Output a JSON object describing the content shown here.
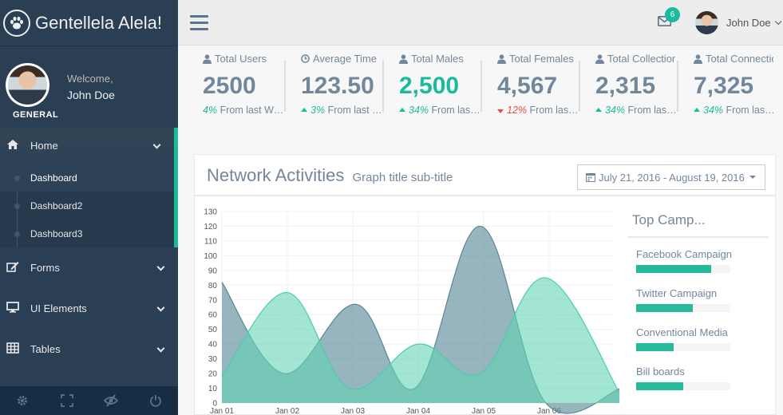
{
  "brand": {
    "title": "Gentellela Alela!"
  },
  "profile": {
    "welcome": "Welcome,",
    "name": "John Doe"
  },
  "sidebar": {
    "section": "GENERAL",
    "home": {
      "label": "Home"
    },
    "submenu": [
      "Dashboard",
      "Dashboard2",
      "Dashboard3"
    ],
    "items": [
      {
        "label": "Forms"
      },
      {
        "label": "UI Elements"
      },
      {
        "label": "Tables"
      }
    ]
  },
  "topbar": {
    "mail_count": "6",
    "user": "John Doe"
  },
  "tiles": [
    {
      "label": "Total Users",
      "icon": "user-icon",
      "count": "2500",
      "pct": "4%",
      "suffix": "From last Week",
      "trend": "none"
    },
    {
      "label": "Average Time",
      "icon": "clock-icon",
      "count": "123.50",
      "pct": "3%",
      "suffix": "From last Week",
      "trend": "up"
    },
    {
      "label": "Total Males",
      "icon": "user-icon",
      "count": "2,500",
      "pct": "34%",
      "suffix": "From last Week",
      "trend": "up",
      "highlight": true
    },
    {
      "label": "Total Females",
      "icon": "user-icon",
      "count": "4,567",
      "pct": "12%",
      "suffix": "From last Week",
      "trend": "down"
    },
    {
      "label": "Total Collections",
      "icon": "user-icon",
      "count": "2,315",
      "pct": "34%",
      "suffix": "From last Week",
      "trend": "up"
    },
    {
      "label": "Total Connections",
      "icon": "user-icon",
      "count": "7,325",
      "pct": "34%",
      "suffix": "From last Week",
      "trend": "up"
    }
  ],
  "panel": {
    "title": "Network Activities",
    "subtitle": "Graph title sub-title",
    "date_range": "July 21, 2016 - August 19, 2016"
  },
  "campaigns": {
    "title": "Top Camp...",
    "items": [
      {
        "name": "Facebook Campaign",
        "value": 80
      },
      {
        "name": "Twitter Campaign",
        "value": 60
      },
      {
        "name": "Conventional Media",
        "value": 40
      },
      {
        "name": "Bill boards",
        "value": 50
      }
    ]
  },
  "colors": {
    "sidebar": "#2A3F54",
    "accent": "#1ABB9C",
    "text": "#73879C",
    "danger": "#E74C3C"
  },
  "chart_data": {
    "type": "area",
    "x": [
      "Jan 01",
      "Jan 02",
      "Jan 03",
      "Jan 04",
      "Jan 05",
      "Jan 06"
    ],
    "ylim": [
      0,
      130
    ],
    "yticks": [
      0,
      10,
      20,
      30,
      40,
      50,
      60,
      70,
      80,
      90,
      100,
      110,
      120,
      130
    ],
    "series": [
      {
        "name": "series-1",
        "color": "#96CA59",
        "fill": "#5F8E9C",
        "points": [
          [
            0,
            82
          ],
          [
            0.95,
            20
          ],
          [
            2.05,
            67
          ],
          [
            2.95,
            10
          ],
          [
            3.95,
            120
          ],
          [
            4.95,
            0
          ],
          [
            6.1,
            10
          ]
        ]
      },
      {
        "name": "series-2",
        "color": "#3FC9A8",
        "fill": "#62D3B4",
        "points": [
          [
            0,
            18
          ],
          [
            1.0,
            75
          ],
          [
            1.95,
            10
          ],
          [
            3.0,
            40
          ],
          [
            3.95,
            20
          ],
          [
            4.95,
            85
          ],
          [
            6.1,
            5
          ]
        ]
      }
    ]
  }
}
